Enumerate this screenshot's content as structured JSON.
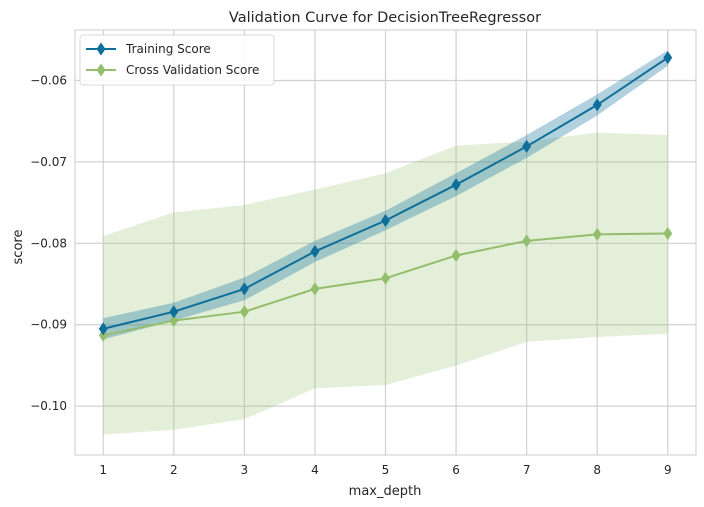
{
  "chart_data": {
    "type": "line",
    "title": "Validation Curve for DecisionTreeRegressor",
    "xlabel": "max_depth",
    "ylabel": "score",
    "x": [
      1,
      2,
      3,
      4,
      5,
      6,
      7,
      8,
      9
    ],
    "xlim": [
      0.6,
      9.4
    ],
    "ylim": [
      -0.106,
      -0.0538
    ],
    "xticks": [
      1,
      2,
      3,
      4,
      5,
      6,
      7,
      8,
      9
    ],
    "xtick_labels": [
      "1",
      "2",
      "3",
      "4",
      "5",
      "6",
      "7",
      "8",
      "9"
    ],
    "yticks": [
      -0.1,
      -0.09,
      -0.08,
      -0.07,
      -0.06
    ],
    "ytick_labels": [
      "−0.10",
      "−0.09",
      "−0.08",
      "−0.07",
      "−0.06"
    ],
    "grid": true,
    "legend_position": "top-left",
    "series": [
      {
        "name": "Training Score",
        "color": "#0e6f9a",
        "band_color": "#0e6f9a",
        "values": [
          -0.0905,
          -0.0884,
          -0.0856,
          -0.081,
          -0.0772,
          -0.0728,
          -0.0681,
          -0.063,
          -0.0572
        ],
        "lower": [
          -0.0918,
          -0.0895,
          -0.087,
          -0.0823,
          -0.0784,
          -0.0742,
          -0.0695,
          -0.0643,
          -0.0582
        ],
        "upper": [
          -0.0892,
          -0.0873,
          -0.0842,
          -0.0797,
          -0.076,
          -0.0714,
          -0.0667,
          -0.0617,
          -0.0563
        ]
      },
      {
        "name": "Cross Validation Score",
        "color": "#94be6d",
        "band_color": "#94be6d",
        "values": [
          -0.0913,
          -0.0895,
          -0.0884,
          -0.0856,
          -0.0843,
          -0.0815,
          -0.0797,
          -0.0789,
          -0.0788
        ],
        "lower": [
          -0.1035,
          -0.1029,
          -0.1016,
          -0.0978,
          -0.0974,
          -0.095,
          -0.0921,
          -0.0915,
          -0.0911
        ],
        "upper": [
          -0.0791,
          -0.0762,
          -0.0753,
          -0.0734,
          -0.0714,
          -0.068,
          -0.0675,
          -0.0664,
          -0.0667
        ]
      }
    ]
  }
}
